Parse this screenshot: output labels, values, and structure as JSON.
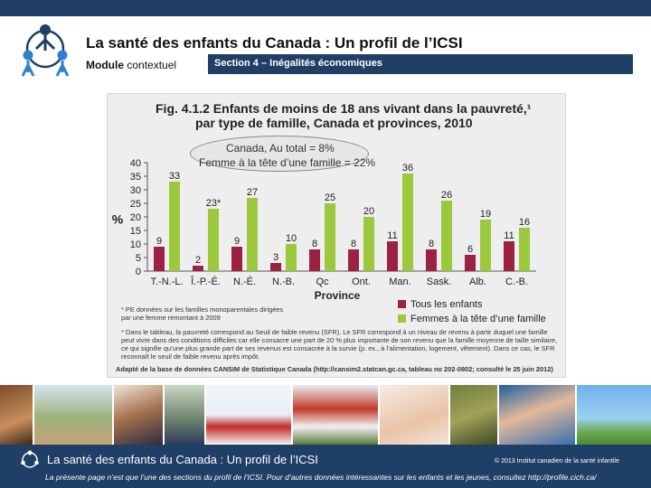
{
  "header": {
    "title": "La santé des enfants du Canada : Un profil de l’ICSI",
    "module_strong": "Module",
    "module_rest": "contextuel",
    "section": "Section 4 – Inégalités économiques"
  },
  "figure": {
    "oval_line1": "Canada, Au total = 8%",
    "oval_line2": "Femme à la tête d’une famille = 22%",
    "footnote1": "* PE données sur les familles monoparentales dirigées par une femme remontant à 2009",
    "footnote2": "* Dans le tableau, la pauvreté correspond au Seuil de faible revenu (SFR). Le SFR correspond à un niveau de revenu à partir duquel une famille peut vivre dans des conditions difficiles car elle consacre une part de 20 % plus importante de son revenu que la famille moyenne de taille similaire, ce qui signifie qu’une plus grande part de ses revenus est consacrée à la survie (p. ex., à l’alimentation, logement, vêtement). Dans ce cas, le SFR reconnaît le seuil de faible revenu après impôt.",
    "source": "Adapté de la base de données CANSIM de Statistique Canada (http://cansim2.statcan.gc.ca, tableau no 202-0802; consulté le 25 juin 2012)"
  },
  "chart_data": {
    "type": "bar",
    "title": "Fig. 4.1.2  Enfants de moins de 18 ans vivant dans la pauvreté,¹ par type de famille, Canada et provinces, 2010",
    "title_line1": "Fig. 4.1.2  Enfants de moins de 18 ans vivant dans la pauvreté,¹",
    "title_line2": "par type de famille, Canada et provinces, 2010",
    "xlabel": "Province",
    "ylabel": "%",
    "ylim": [
      0,
      40
    ],
    "yticks": [
      0,
      5,
      10,
      15,
      20,
      25,
      30,
      35,
      40
    ],
    "grid": false,
    "legend_position": "bottom-right",
    "categories": [
      "T.-N.-L.",
      "Î.-P.-É.",
      "N.-É.",
      "N.-B.",
      "Qc",
      "Ont.",
      "Man.",
      "Sask.",
      "Alb.",
      "C.-B."
    ],
    "series": [
      {
        "name": "Tous les enfants",
        "color": "#9b2242",
        "values": [
          9,
          2,
          9,
          3,
          8,
          8,
          11,
          8,
          6,
          11
        ],
        "labels": [
          "9",
          "2",
          "9",
          "3",
          "8",
          "8",
          "11",
          "8",
          "6",
          "11"
        ]
      },
      {
        "name": "Femmes à la tête d’une famille",
        "color": "#9bc83c",
        "values": [
          33,
          23,
          27,
          10,
          25,
          20,
          36,
          26,
          19,
          16
        ],
        "labels": [
          "33",
          "23*",
          "27",
          "10",
          "25",
          "20",
          "36",
          "26",
          "19",
          "16"
        ]
      }
    ]
  },
  "footer": {
    "title": "La santé des enfants du Canada : Un profil de l’ICSI",
    "copyright": "© 2013  Institut canadien de la santé infantile",
    "note": "La présente page n’est que l’une des sections du profil de l’ICSI. Pour d’autres données intéressantes sur les enfants et les jeunes, consultez http://profile.cich.ca/"
  }
}
